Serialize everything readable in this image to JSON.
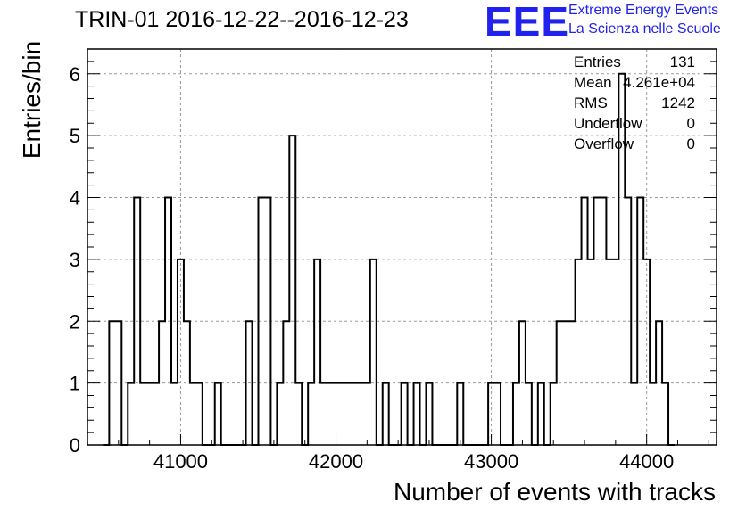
{
  "header": {
    "title": "TRIN-01 2016-12-22--2016-12-23",
    "logo_text": "EEE",
    "brand_line1": "Extreme Energy Events",
    "brand_line2": "La Scienza nelle Scuole",
    "brand_color": "#2222ee"
  },
  "stats": [
    {
      "key": "Entries",
      "value": "131"
    },
    {
      "key": "Mean",
      "value": "4.261e+04"
    },
    {
      "key": "RMS",
      "value": "1242"
    },
    {
      "key": "Underflow",
      "value": "0"
    },
    {
      "key": "Overflow",
      "value": "0"
    }
  ],
  "chart_data": {
    "type": "histogram",
    "title": "TRIN-01 2016-12-22--2016-12-23",
    "xlabel": "Number of events with tracks",
    "ylabel": "Entries/bin",
    "xlim": [
      40400,
      44450
    ],
    "ylim": [
      0,
      6.4
    ],
    "bin_width": 40,
    "xticks": [
      41000,
      42000,
      43000,
      44000
    ],
    "yticks": [
      0,
      1,
      2,
      3,
      4,
      5,
      6
    ],
    "grid": true,
    "line_color": "#000000",
    "bins": [
      {
        "x": 40580,
        "y": 0
      },
      {
        "x": 40580,
        "y": 2
      },
      {
        "x": 40660,
        "y": 2
      },
      {
        "x": 40660,
        "y": 0
      },
      {
        "x": 40680,
        "y": 0
      },
      {
        "x": 40680,
        "y": 1
      },
      {
        "x": 40710,
        "y": 1
      },
      {
        "x": 40710,
        "y": 4
      },
      {
        "x": 40740,
        "y": 4
      },
      {
        "x": 40740,
        "y": 1
      },
      {
        "x": 40880,
        "y": 1
      },
      {
        "x": 40880,
        "y": 2
      },
      {
        "x": 40900,
        "y": 2
      },
      {
        "x": 40900,
        "y": 4
      },
      {
        "x": 40940,
        "y": 4
      },
      {
        "x": 40940,
        "y": 1
      },
      {
        "x": 40980,
        "y": 1
      },
      {
        "x": 40980,
        "y": 3
      },
      {
        "x": 41020,
        "y": 3
      },
      {
        "x": 41020,
        "y": 2
      },
      {
        "x": 41060,
        "y": 2
      },
      {
        "x": 41060,
        "y": 1
      },
      {
        "x": 41140,
        "y": 1
      },
      {
        "x": 41140,
        "y": 0
      },
      {
        "x": 41220,
        "y": 0
      },
      {
        "x": 41220,
        "y": 1
      },
      {
        "x": 41260,
        "y": 1
      },
      {
        "x": 41260,
        "y": 0
      },
      {
        "x": 41420,
        "y": 0
      },
      {
        "x": 41420,
        "y": 2
      },
      {
        "x": 41460,
        "y": 2
      },
      {
        "x": 41460,
        "y": 0
      },
      {
        "x": 41500,
        "y": 0
      },
      {
        "x": 41500,
        "y": 4
      },
      {
        "x": 41580,
        "y": 4
      },
      {
        "x": 41580,
        "y": 0
      },
      {
        "x": 41620,
        "y": 0
      },
      {
        "x": 41620,
        "y": 1
      },
      {
        "x": 41660,
        "y": 1
      },
      {
        "x": 41660,
        "y": 2
      },
      {
        "x": 41700,
        "y": 2
      },
      {
        "x": 41700,
        "y": 5
      },
      {
        "x": 41740,
        "y": 5
      },
      {
        "x": 41740,
        "y": 1
      },
      {
        "x": 41780,
        "y": 1
      },
      {
        "x": 41780,
        "y": 0
      },
      {
        "x": 41820,
        "y": 0
      },
      {
        "x": 41820,
        "y": 1
      },
      {
        "x": 41860,
        "y": 1
      },
      {
        "x": 41860,
        "y": 3
      },
      {
        "x": 41900,
        "y": 3
      },
      {
        "x": 41900,
        "y": 1
      },
      {
        "x": 42220,
        "y": 1
      },
      {
        "x": 42220,
        "y": 3
      },
      {
        "x": 42260,
        "y": 3
      },
      {
        "x": 42260,
        "y": 0
      },
      {
        "x": 42340,
        "y": 0
      },
      {
        "x": 42340,
        "y": 1
      },
      {
        "x": 42380,
        "y": 1
      },
      {
        "x": 42380,
        "y": 0
      }
    ],
    "bars": [
      {
        "bin": 40500,
        "value": 0
      },
      {
        "bin": 40540,
        "value": 2
      },
      {
        "bin": 40580,
        "value": 2
      },
      {
        "bin": 40620,
        "value": 0
      },
      {
        "bin": 40660,
        "value": 1
      },
      {
        "bin": 40700,
        "value": 4
      },
      {
        "bin": 40740,
        "value": 1
      },
      {
        "bin": 40780,
        "value": 1
      },
      {
        "bin": 40820,
        "value": 1
      },
      {
        "bin": 40860,
        "value": 2
      },
      {
        "bin": 40900,
        "value": 4
      },
      {
        "bin": 40940,
        "value": 1
      },
      {
        "bin": 40980,
        "value": 3
      },
      {
        "bin": 41020,
        "value": 2
      },
      {
        "bin": 41060,
        "value": 1
      },
      {
        "bin": 41100,
        "value": 1
      },
      {
        "bin": 41140,
        "value": 0
      },
      {
        "bin": 41180,
        "value": 0
      },
      {
        "bin": 41220,
        "value": 1
      },
      {
        "bin": 41260,
        "value": 0
      },
      {
        "bin": 41300,
        "value": 0
      },
      {
        "bin": 41340,
        "value": 0
      },
      {
        "bin": 41380,
        "value": 0
      },
      {
        "bin": 41420,
        "value": 2
      },
      {
        "bin": 41460,
        "value": 0
      },
      {
        "bin": 41500,
        "value": 4
      },
      {
        "bin": 41540,
        "value": 4
      },
      {
        "bin": 41580,
        "value": 0
      },
      {
        "bin": 41620,
        "value": 1
      },
      {
        "bin": 41660,
        "value": 2
      },
      {
        "bin": 41700,
        "value": 5
      },
      {
        "bin": 41740,
        "value": 1
      },
      {
        "bin": 41780,
        "value": 0
      },
      {
        "bin": 41820,
        "value": 1
      },
      {
        "bin": 41860,
        "value": 3
      },
      {
        "bin": 41900,
        "value": 1
      },
      {
        "bin": 41940,
        "value": 1
      },
      {
        "bin": 41980,
        "value": 1
      },
      {
        "bin": 42020,
        "value": 1
      },
      {
        "bin": 42060,
        "value": 1
      },
      {
        "bin": 42100,
        "value": 1
      },
      {
        "bin": 42140,
        "value": 1
      },
      {
        "bin": 42180,
        "value": 1
      },
      {
        "bin": 42220,
        "value": 3
      },
      {
        "bin": 42260,
        "value": 0
      },
      {
        "bin": 42300,
        "value": 1
      },
      {
        "bin": 42340,
        "value": 0
      },
      {
        "bin": 42380,
        "value": 0
      },
      {
        "bin": 42420,
        "value": 1
      },
      {
        "bin": 42460,
        "value": 0
      },
      {
        "bin": 42500,
        "value": 1
      },
      {
        "bin": 42540,
        "value": 0
      },
      {
        "bin": 42580,
        "value": 1
      },
      {
        "bin": 42620,
        "value": 0
      },
      {
        "bin": 42660,
        "value": 0
      },
      {
        "bin": 42700,
        "value": 0
      },
      {
        "bin": 42740,
        "value": 0
      },
      {
        "bin": 42780,
        "value": 1
      },
      {
        "bin": 42820,
        "value": 0
      },
      {
        "bin": 42860,
        "value": 0
      },
      {
        "bin": 42900,
        "value": 0
      },
      {
        "bin": 42940,
        "value": 0
      },
      {
        "bin": 42980,
        "value": 1
      },
      {
        "bin": 43020,
        "value": 1
      },
      {
        "bin": 43060,
        "value": 0
      },
      {
        "bin": 43100,
        "value": 0
      },
      {
        "bin": 43140,
        "value": 1
      },
      {
        "bin": 43180,
        "value": 2
      },
      {
        "bin": 43220,
        "value": 1
      },
      {
        "bin": 43260,
        "value": 0
      },
      {
        "bin": 43300,
        "value": 1
      },
      {
        "bin": 43340,
        "value": 0
      },
      {
        "bin": 43380,
        "value": 1
      },
      {
        "bin": 43420,
        "value": 2
      },
      {
        "bin": 43460,
        "value": 2
      },
      {
        "bin": 43500,
        "value": 2
      },
      {
        "bin": 43540,
        "value": 3
      },
      {
        "bin": 43580,
        "value": 4
      },
      {
        "bin": 43620,
        "value": 3
      },
      {
        "bin": 43660,
        "value": 4
      },
      {
        "bin": 43700,
        "value": 4
      },
      {
        "bin": 43740,
        "value": 3
      },
      {
        "bin": 43780,
        "value": 3
      },
      {
        "bin": 43820,
        "value": 6
      },
      {
        "bin": 43860,
        "value": 4
      },
      {
        "bin": 43900,
        "value": 1
      },
      {
        "bin": 43940,
        "value": 4
      },
      {
        "bin": 43980,
        "value": 3
      },
      {
        "bin": 44020,
        "value": 1
      },
      {
        "bin": 44060,
        "value": 2
      },
      {
        "bin": 44100,
        "value": 1
      },
      {
        "bin": 44140,
        "value": 0
      }
    ]
  }
}
